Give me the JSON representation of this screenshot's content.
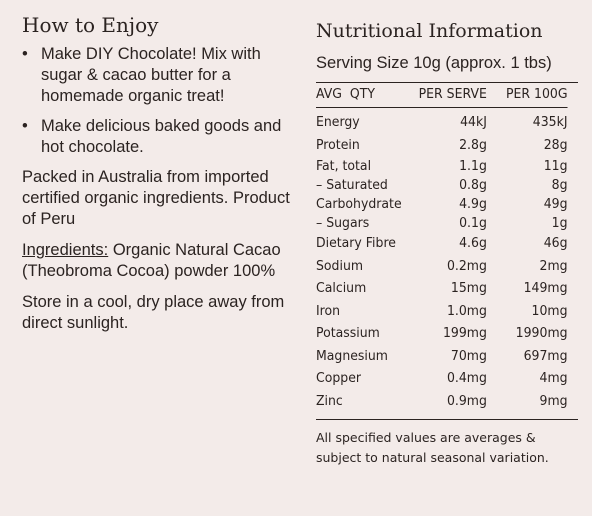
{
  "how_to_enjoy": {
    "title": "How to Enjoy",
    "bullets": [
      "Make DIY Chocolate!  Mix with sugar & cacao butter for a homemade organic treat!",
      "Make delicious baked goods and hot chocolate."
    ],
    "bullet_glyph": "•",
    "packed": "Packed in Australia from imported certified organic ingredients. Product of Peru",
    "ingredients_label": "Ingredients:",
    "ingredients_text": " Organic Natural Cacao (Theobroma Cocoa) powder 100%",
    "storage": "Store in a cool, dry place away from direct sunlight."
  },
  "nutrition": {
    "title": "Nutritional Information",
    "serving_size": "Serving Size 10g (approx. 1 tbs)",
    "headers": [
      "AVG  QTY",
      "PER SERVE",
      "PER 100G"
    ],
    "rows": [
      {
        "name": "Energy",
        "per_serve": "44kJ",
        "per_100g": "435kJ"
      },
      {
        "name": "Protein",
        "per_serve": "2.8g",
        "per_100g": "28g"
      },
      {
        "name": "Fat, total",
        "per_serve": "1.1g",
        "per_100g": "11g"
      },
      {
        "name": "– Saturated",
        "per_serve": "0.8g",
        "per_100g": "8g"
      },
      {
        "name": "Carbohydrate",
        "per_serve": "4.9g",
        "per_100g": "49g"
      },
      {
        "name": "– Sugars",
        "per_serve": "0.1g",
        "per_100g": "1g"
      },
      {
        "name": "Dietary Fibre",
        "per_serve": "4.6g",
        "per_100g": "46g"
      },
      {
        "name": "Sodium",
        "per_serve": "0.2mg",
        "per_100g": "2mg"
      },
      {
        "name": "Calcium",
        "per_serve": "15mg",
        "per_100g": "149mg"
      },
      {
        "name": "Iron",
        "per_serve": "1.0mg",
        "per_100g": "10mg"
      },
      {
        "name": "Potassium",
        "per_serve": "199mg",
        "per_100g": "1990mg"
      },
      {
        "name": "Magnesium",
        "per_serve": "70mg",
        "per_100g": "697mg"
      },
      {
        "name": "Copper",
        "per_serve": "0.4mg",
        "per_100g": "4mg"
      },
      {
        "name": "Zinc",
        "per_serve": "0.9mg",
        "per_100g": "9mg"
      }
    ],
    "footnote": "All specified values are averages & subject to natural seasonal variation."
  }
}
